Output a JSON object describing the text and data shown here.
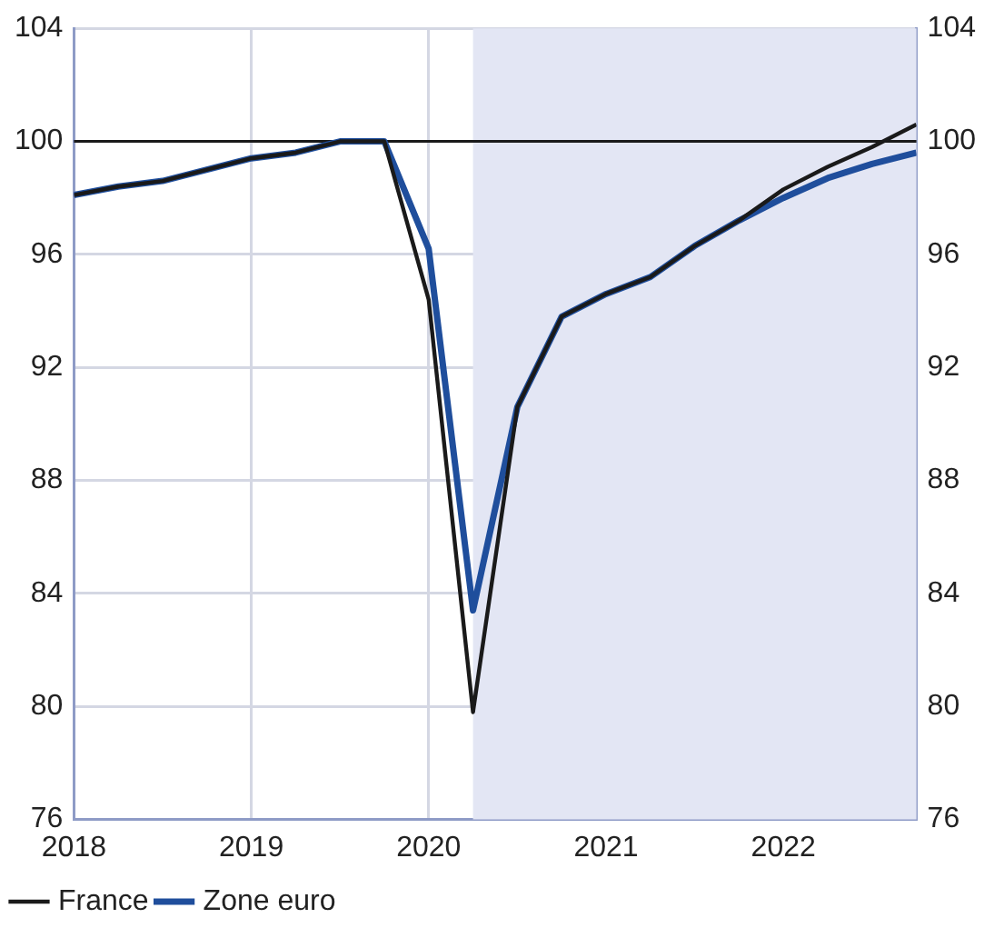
{
  "chart_data": {
    "type": "line",
    "x": [
      2018,
      2018.25,
      2018.5,
      2018.75,
      2019,
      2019.25,
      2019.5,
      2019.75,
      2020,
      2020.25,
      2020.5,
      2020.75,
      2021,
      2021.25,
      2021.5,
      2021.75,
      2022,
      2022.25,
      2022.5,
      2022.75
    ],
    "series": [
      {
        "name": "France",
        "color": "#1a1a1a",
        "values": [
          98.1,
          98.4,
          98.6,
          99.0,
          99.4,
          99.6,
          100,
          100,
          94.4,
          79.8,
          90.6,
          93.8,
          94.6,
          95.2,
          96.3,
          97.2,
          98.3,
          99.1,
          99.8,
          100.6
        ]
      },
      {
        "name": "Zone euro",
        "color": "#1f4e9c",
        "values": [
          98.1,
          98.4,
          98.6,
          99.0,
          99.4,
          99.6,
          100,
          100,
          96.2,
          83.4,
          90.6,
          93.8,
          94.6,
          95.2,
          96.3,
          97.2,
          98.0,
          98.7,
          99.2,
          99.6
        ]
      }
    ],
    "xlim": [
      2018,
      2022.75
    ],
    "xticks": [
      2018,
      2019,
      2020,
      2021,
      2022
    ],
    "ylim": [
      76,
      104
    ],
    "yticks": [
      76,
      80,
      84,
      88,
      92,
      96,
      100,
      104
    ],
    "y2lim": [
      76,
      104
    ],
    "y2ticks": [
      76,
      80,
      84,
      88,
      92,
      96,
      100,
      104
    ],
    "ref_lines": [
      {
        "axis": "y",
        "value": 100,
        "color": "#1a1a1a"
      }
    ],
    "bands": [
      {
        "axis": "x",
        "from": 2020.25,
        "to": 2022.75,
        "color": "#e3e6f4"
      }
    ],
    "grid": true,
    "legend": "bottom",
    "marker": "none",
    "line_style": "solid"
  }
}
